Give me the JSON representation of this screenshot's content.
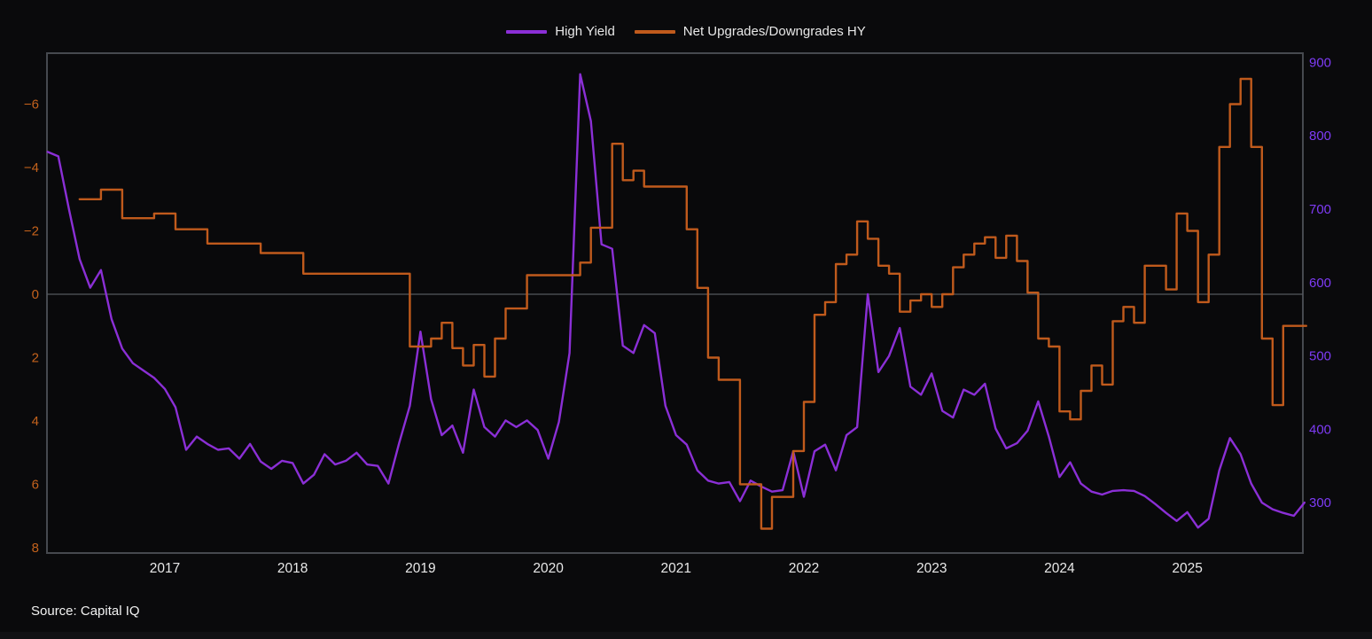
{
  "page": {
    "background": "#0a0a0c"
  },
  "legend": {
    "items": [
      {
        "label": "High Yield",
        "color": "#8b2fd6"
      },
      {
        "label": "Net Upgrades/Downgrades HY",
        "color": "#c05a1c"
      }
    ]
  },
  "footer": {
    "source": "Source: Capital IQ"
  },
  "chart_data": {
    "type": "line",
    "title": "",
    "legend_position": "top-center",
    "grid": "zero-line-only",
    "x_axis": {
      "domain": [
        2016.078,
        2025.904
      ],
      "year_ticks": [
        2017,
        2018,
        2019,
        2020,
        2021,
        2022,
        2023,
        2024,
        2025
      ],
      "tick_color": "#e8e8e8"
    },
    "left_axis": {
      "series": "Net Upgrades/Downgrades HY",
      "inverted": true,
      "domain": [
        -7.61,
        8.17
      ],
      "ticks": [
        -6,
        -4,
        -2,
        0,
        2,
        4,
        6,
        8
      ],
      "tick_color": "#c4621c"
    },
    "right_axis": {
      "series": "High Yield",
      "domain": [
        912.6,
        231.3
      ],
      "ticks": [
        900,
        800,
        700,
        600,
        500,
        400,
        300
      ],
      "tick_color": "#7e3bf5"
    },
    "zero_line": {
      "left_value": 0,
      "color": "#55585e"
    },
    "frame_color": "#46494f",
    "series": [
      {
        "name": "High Yield",
        "axis": "right",
        "color": "#8b2fd6",
        "shape": "linear",
        "points": [
          [
            "2016-01",
            778
          ],
          [
            "2016-02",
            772
          ],
          [
            "2016-03",
            700
          ],
          [
            "2016-04",
            632
          ],
          [
            "2016-05",
            593
          ],
          [
            "2016-06",
            617
          ],
          [
            "2016-07",
            550
          ],
          [
            "2016-08",
            510
          ],
          [
            "2016-09",
            490
          ],
          [
            "2016-10",
            480
          ],
          [
            "2016-11",
            470
          ],
          [
            "2016-12",
            455
          ],
          [
            "2017-01",
            430
          ],
          [
            "2017-02",
            372
          ],
          [
            "2017-03",
            390
          ],
          [
            "2017-04",
            380
          ],
          [
            "2017-05",
            372
          ],
          [
            "2017-06",
            374
          ],
          [
            "2017-07",
            360
          ],
          [
            "2017-08",
            380
          ],
          [
            "2017-09",
            356
          ],
          [
            "2017-10",
            346
          ],
          [
            "2017-11",
            357
          ],
          [
            "2017-12",
            354
          ],
          [
            "2018-01",
            326
          ],
          [
            "2018-02",
            338
          ],
          [
            "2018-03",
            366
          ],
          [
            "2018-04",
            352
          ],
          [
            "2018-05",
            357
          ],
          [
            "2018-06",
            368
          ],
          [
            "2018-07",
            352
          ],
          [
            "2018-08",
            350
          ],
          [
            "2018-09",
            326
          ],
          [
            "2018-10",
            381
          ],
          [
            "2018-11",
            432
          ],
          [
            "2018-12",
            533
          ],
          [
            "2019-01",
            441
          ],
          [
            "2019-02",
            392
          ],
          [
            "2019-03",
            405
          ],
          [
            "2019-04",
            368
          ],
          [
            "2019-05",
            454
          ],
          [
            "2019-06",
            403
          ],
          [
            "2019-07",
            390
          ],
          [
            "2019-08",
            412
          ],
          [
            "2019-09",
            403
          ],
          [
            "2019-10",
            412
          ],
          [
            "2019-11",
            399
          ],
          [
            "2019-12",
            360
          ],
          [
            "2020-01",
            410
          ],
          [
            "2020-02",
            504
          ],
          [
            "2020-03",
            884
          ],
          [
            "2020-04",
            820
          ],
          [
            "2020-05",
            652
          ],
          [
            "2020-06",
            646
          ],
          [
            "2020-07",
            514
          ],
          [
            "2020-08",
            504
          ],
          [
            "2020-09",
            542
          ],
          [
            "2020-10",
            531
          ],
          [
            "2020-11",
            432
          ],
          [
            "2020-12",
            392
          ],
          [
            "2021-01",
            379
          ],
          [
            "2021-02",
            344
          ],
          [
            "2021-03",
            330
          ],
          [
            "2021-04",
            326
          ],
          [
            "2021-05",
            328
          ],
          [
            "2021-06",
            302
          ],
          [
            "2021-07",
            330
          ],
          [
            "2021-08",
            322
          ],
          [
            "2021-09",
            315
          ],
          [
            "2021-10",
            317
          ],
          [
            "2021-11",
            370
          ],
          [
            "2021-12",
            308
          ],
          [
            "2022-01",
            370
          ],
          [
            "2022-02",
            379
          ],
          [
            "2022-03",
            344
          ],
          [
            "2022-04",
            392
          ],
          [
            "2022-05",
            403
          ],
          [
            "2022-06",
            584
          ],
          [
            "2022-07",
            478
          ],
          [
            "2022-08",
            500
          ],
          [
            "2022-09",
            538
          ],
          [
            "2022-10",
            458
          ],
          [
            "2022-11",
            447
          ],
          [
            "2022-12",
            476
          ],
          [
            "2023-01",
            425
          ],
          [
            "2023-02",
            416
          ],
          [
            "2023-03",
            454
          ],
          [
            "2023-04",
            447
          ],
          [
            "2023-05",
            462
          ],
          [
            "2023-06",
            401
          ],
          [
            "2023-07",
            374
          ],
          [
            "2023-08",
            381
          ],
          [
            "2023-09",
            398
          ],
          [
            "2023-10",
            438
          ],
          [
            "2023-11",
            390
          ],
          [
            "2023-12",
            335
          ],
          [
            "2024-01",
            355
          ],
          [
            "2024-02",
            326
          ],
          [
            "2024-03",
            315
          ],
          [
            "2024-04",
            311
          ],
          [
            "2024-05",
            316
          ],
          [
            "2024-06",
            317
          ],
          [
            "2024-07",
            316
          ],
          [
            "2024-08",
            309
          ],
          [
            "2024-09",
            298
          ],
          [
            "2024-10",
            286
          ],
          [
            "2024-11",
            275
          ],
          [
            "2024-12",
            287
          ],
          [
            "2025-01",
            266
          ],
          [
            "2025-02",
            278
          ],
          [
            "2025-03",
            344
          ],
          [
            "2025-04",
            388
          ],
          [
            "2025-05",
            366
          ],
          [
            "2025-06",
            326
          ],
          [
            "2025-07",
            300
          ],
          [
            "2025-08",
            291
          ],
          [
            "2025-09",
            286
          ],
          [
            "2025-10",
            282
          ],
          [
            "2025-11",
            300
          ]
        ]
      },
      {
        "name": "Net Upgrades/Downgrades HY",
        "axis": "left",
        "color": "#c05a1c",
        "shape": "step-after",
        "points": [
          [
            "2016-04",
            -3.0
          ],
          [
            "2016-05",
            -3.0
          ],
          [
            "2016-06",
            -3.3
          ],
          [
            "2016-07",
            -3.3
          ],
          [
            "2016-08",
            -2.4
          ],
          [
            "2016-09",
            -2.4
          ],
          [
            "2016-10",
            -2.4
          ],
          [
            "2016-11",
            -2.55
          ],
          [
            "2016-12",
            -2.55
          ],
          [
            "2017-01",
            -2.05
          ],
          [
            "2017-02",
            -2.05
          ],
          [
            "2017-03",
            -2.05
          ],
          [
            "2017-04",
            -1.6
          ],
          [
            "2017-05",
            -1.6
          ],
          [
            "2017-06",
            -1.6
          ],
          [
            "2017-07",
            -1.6
          ],
          [
            "2017-08",
            -1.6
          ],
          [
            "2017-09",
            -1.3
          ],
          [
            "2017-10",
            -1.3
          ],
          [
            "2017-11",
            -1.3
          ],
          [
            "2017-12",
            -1.3
          ],
          [
            "2018-01",
            -0.65
          ],
          [
            "2018-02",
            -0.65
          ],
          [
            "2018-03",
            -0.65
          ],
          [
            "2018-04",
            -0.65
          ],
          [
            "2018-05",
            -0.65
          ],
          [
            "2018-06",
            -0.65
          ],
          [
            "2018-07",
            -0.65
          ],
          [
            "2018-08",
            -0.65
          ],
          [
            "2018-09",
            -0.65
          ],
          [
            "2018-10",
            -0.65
          ],
          [
            "2018-11",
            1.65
          ],
          [
            "2018-12",
            1.65
          ],
          [
            "2019-01",
            1.4
          ],
          [
            "2019-02",
            0.9
          ],
          [
            "2019-03",
            1.7
          ],
          [
            "2019-04",
            2.25
          ],
          [
            "2019-05",
            1.6
          ],
          [
            "2019-06",
            2.6
          ],
          [
            "2019-07",
            1.4
          ],
          [
            "2019-08",
            0.45
          ],
          [
            "2019-09",
            0.45
          ],
          [
            "2019-10",
            -0.6
          ],
          [
            "2019-11",
            -0.6
          ],
          [
            "2019-12",
            -0.6
          ],
          [
            "2020-01",
            -0.6
          ],
          [
            "2020-02",
            -0.6
          ],
          [
            "2020-03",
            -1.0
          ],
          [
            "2020-04",
            -2.1
          ],
          [
            "2020-05",
            -2.1
          ],
          [
            "2020-06",
            -4.75
          ],
          [
            "2020-07",
            -3.6
          ],
          [
            "2020-08",
            -3.9
          ],
          [
            "2020-09",
            -3.4
          ],
          [
            "2020-10",
            -3.4
          ],
          [
            "2020-11",
            -3.4
          ],
          [
            "2020-12",
            -3.4
          ],
          [
            "2021-01",
            -2.05
          ],
          [
            "2021-02",
            -0.2
          ],
          [
            "2021-03",
            2.0
          ],
          [
            "2021-04",
            2.7
          ],
          [
            "2021-05",
            2.7
          ],
          [
            "2021-06",
            6.0
          ],
          [
            "2021-07",
            6.0
          ],
          [
            "2021-08",
            7.4
          ],
          [
            "2021-09",
            6.4
          ],
          [
            "2021-10",
            6.4
          ],
          [
            "2021-11",
            4.95
          ],
          [
            "2021-12",
            3.4
          ],
          [
            "2022-01",
            0.65
          ],
          [
            "2022-02",
            0.25
          ],
          [
            "2022-03",
            -0.95
          ],
          [
            "2022-04",
            -1.25
          ],
          [
            "2022-05",
            -2.3
          ],
          [
            "2022-06",
            -1.75
          ],
          [
            "2022-07",
            -0.9
          ],
          [
            "2022-08",
            -0.65
          ],
          [
            "2022-09",
            0.55
          ],
          [
            "2022-10",
            0.2
          ],
          [
            "2022-11",
            0.0
          ],
          [
            "2022-12",
            0.4
          ],
          [
            "2023-01",
            0.0
          ],
          [
            "2023-02",
            -0.85
          ],
          [
            "2023-03",
            -1.25
          ],
          [
            "2023-04",
            -1.6
          ],
          [
            "2023-05",
            -1.8
          ],
          [
            "2023-06",
            -1.15
          ],
          [
            "2023-07",
            -1.85
          ],
          [
            "2023-08",
            -1.05
          ],
          [
            "2023-09",
            -0.05
          ],
          [
            "2023-10",
            1.4
          ],
          [
            "2023-11",
            1.65
          ],
          [
            "2023-12",
            3.7
          ],
          [
            "2024-01",
            3.95
          ],
          [
            "2024-02",
            3.05
          ],
          [
            "2024-03",
            2.25
          ],
          [
            "2024-04",
            2.85
          ],
          [
            "2024-05",
            0.85
          ],
          [
            "2024-06",
            0.4
          ],
          [
            "2024-07",
            0.9
          ],
          [
            "2024-08",
            -0.9
          ],
          [
            "2024-09",
            -0.9
          ],
          [
            "2024-10",
            -0.15
          ],
          [
            "2024-11",
            -2.55
          ],
          [
            "2024-12",
            -2.0
          ],
          [
            "2025-01",
            0.25
          ],
          [
            "2025-02",
            -1.25
          ],
          [
            "2025-03",
            -4.65
          ],
          [
            "2025-04",
            -6.0
          ],
          [
            "2025-05",
            -6.8
          ],
          [
            "2025-06",
            -4.65
          ],
          [
            "2025-07",
            1.4
          ],
          [
            "2025-08",
            3.5
          ],
          [
            "2025-09",
            1.0
          ],
          [
            "2025-10",
            1.0
          ]
        ]
      }
    ]
  }
}
